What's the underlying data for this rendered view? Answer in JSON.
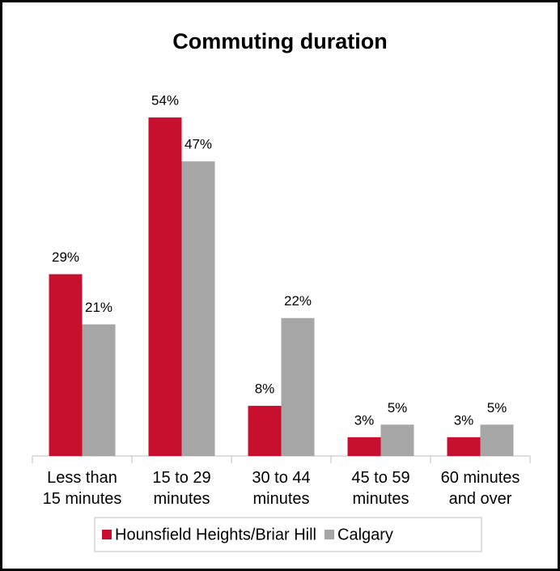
{
  "chart_data": {
    "type": "bar",
    "title": "Commuting duration",
    "categories": [
      "Less than\n15 minutes",
      "15 to 29\nminutes",
      "30 to 44\nminutes",
      "45 to 59\nminutes",
      "60 minutes\nand over"
    ],
    "series": [
      {
        "name": "Hounsfield Heights/Briar Hill",
        "color": "#c8102e",
        "values": [
          29,
          54,
          8,
          3,
          3
        ],
        "value_labels": [
          "29%",
          "54%",
          "8%",
          "3%",
          "3%"
        ]
      },
      {
        "name": "Calgary",
        "color": "#a6a6a6",
        "values": [
          21,
          47,
          22,
          5,
          5
        ],
        "value_labels": [
          "21%",
          "47%",
          "22%",
          "5%",
          "5%"
        ]
      }
    ]
  }
}
